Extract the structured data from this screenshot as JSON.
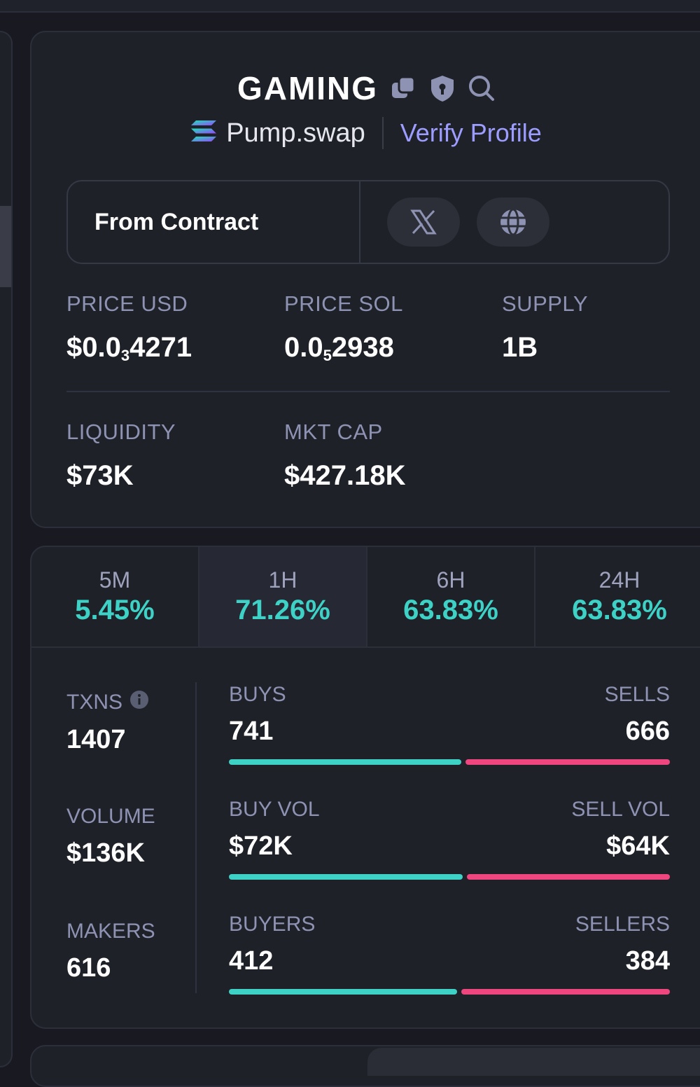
{
  "token": {
    "name": "GAMING",
    "dex": "Pump.swap",
    "verify_label": "Verify Profile",
    "contract_label": "From Contract"
  },
  "stats": {
    "price_usd_label": "PRICE USD",
    "price_usd_prefix": "$0.0",
    "price_usd_sub": "3",
    "price_usd_tail": "4271",
    "price_sol_label": "PRICE SOL",
    "price_sol_prefix": "0.0",
    "price_sol_sub": "5",
    "price_sol_tail": "2938",
    "supply_label": "SUPPLY",
    "supply_value": "1B",
    "liquidity_label": "LIQUIDITY",
    "liquidity_value": "$73K",
    "mktcap_label": "MKT CAP",
    "mktcap_value": "$427.18K"
  },
  "timeframes": [
    {
      "label": "5M",
      "value": "5.45%"
    },
    {
      "label": "1H",
      "value": "71.26%"
    },
    {
      "label": "6H",
      "value": "63.83%"
    },
    {
      "label": "24H",
      "value": "63.83%"
    }
  ],
  "metrics": {
    "txns_label": "TXNS",
    "txns_value": "1407",
    "volume_label": "VOLUME",
    "volume_value": "$136K",
    "makers_label": "MAKERS",
    "makers_value": "616"
  },
  "splits": {
    "buys_label": "BUYS",
    "buys_value": "741",
    "sells_label": "SELLS",
    "sells_value": "666",
    "buy_vol_label": "BUY VOL",
    "buy_vol_value": "$72K",
    "sell_vol_label": "SELL VOL",
    "sell_vol_value": "$64K",
    "buyers_label": "BUYERS",
    "buyers_value": "412",
    "sellers_label": "SELLERS",
    "sellers_value": "384",
    "buys_fraction": 0.527,
    "buy_vol_fraction": 0.53,
    "buyers_fraction": 0.518
  },
  "colors": {
    "positive": "#3ed2c6",
    "negative": "#f0467f",
    "link": "#9c9dff"
  }
}
